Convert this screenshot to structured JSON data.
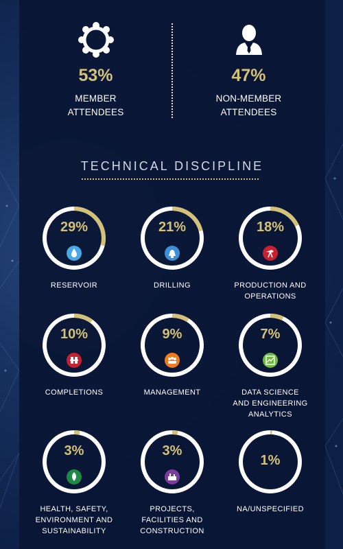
{
  "attendees": {
    "member": {
      "percent": "53%",
      "label": "MEMBER\nATTENDEES",
      "icon": "member-network-icon"
    },
    "non_member": {
      "percent": "47%",
      "label": "NON-MEMBER\nATTENDEES",
      "icon": "person-icon"
    }
  },
  "section_title": "TECHNICAL DISCIPLINE",
  "colors": {
    "gold": "#d4c179",
    "ring": "#ffffff",
    "panel": "#0a1534"
  },
  "disciplines": [
    {
      "percent": "29%",
      "value": 29,
      "label": "RESERVOIR",
      "icon": "reservoir-drop-icon",
      "color": "#4aa8e6"
    },
    {
      "percent": "21%",
      "value": 21,
      "label": "DRILLING",
      "icon": "drilling-bell-icon",
      "color": "#3f8fd8"
    },
    {
      "percent": "18%",
      "value": 18,
      "label": "PRODUCTION AND\nOPERATIONS",
      "icon": "production-pump-icon",
      "color": "#c8202f"
    },
    {
      "percent": "10%",
      "value": 10,
      "label": "COMPLETIONS",
      "icon": "completions-icon",
      "color": "#c8202f"
    },
    {
      "percent": "9%",
      "value": 9,
      "label": "MANAGEMENT",
      "icon": "management-people-icon",
      "color": "#ef7b1e"
    },
    {
      "percent": "7%",
      "value": 7,
      "label": "DATA SCIENCE\nAND ENGINEERING\nANALYTICS",
      "icon": "data-chart-icon",
      "color": "#6fbb3f"
    },
    {
      "percent": "3%",
      "value": 3,
      "label": "HEALTH, SAFETY,\nENVIRONMENT AND\nSUSTAINABILITY",
      "icon": "hse-leaf-icon",
      "color": "#1f8a46"
    },
    {
      "percent": "3%",
      "value": 3,
      "label": "PROJECTS,\nFACILITIES AND\nCONSTRUCTION",
      "icon": "facilities-icon",
      "color": "#7a3d9a"
    },
    {
      "percent": "1%",
      "value": 1,
      "label": "NA/UNSPECIFIED",
      "icon": "",
      "color": ""
    }
  ]
}
